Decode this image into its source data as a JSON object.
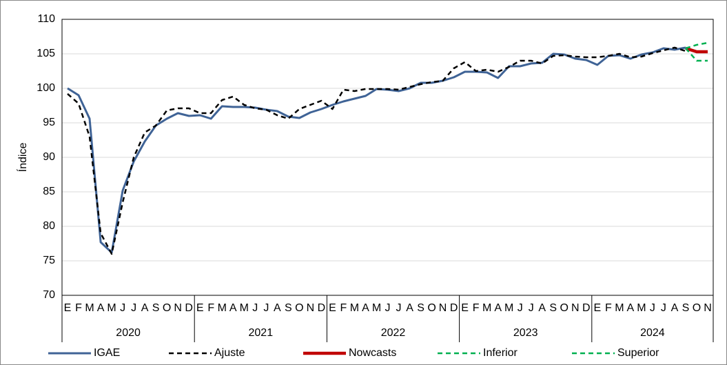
{
  "chart_data": {
    "type": "line",
    "ylabel": "Índice",
    "categories": [
      "E",
      "F",
      "M",
      "A",
      "M",
      "J",
      "J",
      "A",
      "S",
      "O",
      "N",
      "D",
      "E",
      "F",
      "M",
      "A",
      "M",
      "J",
      "J",
      "A",
      "S",
      "O",
      "N",
      "D",
      "E",
      "F",
      "M",
      "A",
      "M",
      "J",
      "J",
      "A",
      "S",
      "O",
      "N",
      "D",
      "E",
      "F",
      "M",
      "A",
      "M",
      "J",
      "J",
      "A",
      "S",
      "O",
      "N",
      "D",
      "E",
      "F",
      "M",
      "A",
      "M",
      "J",
      "J",
      "A",
      "S",
      "O",
      "N"
    ],
    "years": [
      "2020",
      "2021",
      "2022",
      "2023",
      "2024"
    ],
    "ylim": [
      70,
      110
    ],
    "yticks": [
      70,
      75,
      80,
      85,
      90,
      95,
      100,
      105,
      110
    ],
    "grid": true,
    "series": [
      {
        "name": "IGAE",
        "color": "#3f6396",
        "dash": false,
        "width": 3,
        "values": [
          100.0,
          99.0,
          95.6,
          77.7,
          76.2,
          85.2,
          89.4,
          92.3,
          94.6,
          95.6,
          96.4,
          96.0,
          96.1,
          95.6,
          97.4,
          97.3,
          97.3,
          97.2,
          96.9,
          96.7,
          95.9,
          95.7,
          96.5,
          97.0,
          97.6,
          98.1,
          98.5,
          98.9,
          99.9,
          99.8,
          99.6,
          100.0,
          100.8,
          100.8,
          101.1,
          101.6,
          102.4,
          102.4,
          102.3,
          101.5,
          103.2,
          103.2,
          103.6,
          103.7,
          105.0,
          104.9,
          104.3,
          104.1,
          103.4,
          104.7,
          104.8,
          104.3,
          104.9,
          105.2,
          105.8,
          105.6,
          105.9,
          null,
          null
        ]
      },
      {
        "name": "Ajuste",
        "color": "#000000",
        "dash": true,
        "width": 2.5,
        "values": [
          99.2,
          97.8,
          93.0,
          79.0,
          76.0,
          83.5,
          90.0,
          93.6,
          94.6,
          96.8,
          97.1,
          97.1,
          96.4,
          96.4,
          98.3,
          98.8,
          97.6,
          97.1,
          96.9,
          96.1,
          95.6,
          97.0,
          97.6,
          98.2,
          97.0,
          99.8,
          99.6,
          99.9,
          99.9,
          99.9,
          99.8,
          100.2,
          100.6,
          100.9,
          101.1,
          102.9,
          103.8,
          102.5,
          102.7,
          102.4,
          103.1,
          104.0,
          104.0,
          103.6,
          104.7,
          104.8,
          104.6,
          104.5,
          104.5,
          104.7,
          105.0,
          104.5,
          104.6,
          105.1,
          105.5,
          105.9,
          105.4,
          null,
          null
        ]
      },
      {
        "name": "Nowcasts",
        "color": "#c00000",
        "dash": false,
        "width": 4.5,
        "values": [
          null,
          null,
          null,
          null,
          null,
          null,
          null,
          null,
          null,
          null,
          null,
          null,
          null,
          null,
          null,
          null,
          null,
          null,
          null,
          null,
          null,
          null,
          null,
          null,
          null,
          null,
          null,
          null,
          null,
          null,
          null,
          null,
          null,
          null,
          null,
          null,
          null,
          null,
          null,
          null,
          null,
          null,
          null,
          null,
          null,
          null,
          null,
          null,
          null,
          null,
          null,
          null,
          null,
          null,
          null,
          null,
          105.8,
          105.3,
          105.3
        ]
      },
      {
        "name": "Inferior",
        "color": "#00b050",
        "dash": true,
        "width": 2.5,
        "values": [
          null,
          null,
          null,
          null,
          null,
          null,
          null,
          null,
          null,
          null,
          null,
          null,
          null,
          null,
          null,
          null,
          null,
          null,
          null,
          null,
          null,
          null,
          null,
          null,
          null,
          null,
          null,
          null,
          null,
          null,
          null,
          null,
          null,
          null,
          null,
          null,
          null,
          null,
          null,
          null,
          null,
          null,
          null,
          null,
          null,
          null,
          null,
          null,
          null,
          null,
          null,
          null,
          null,
          null,
          null,
          null,
          105.8,
          104.0,
          104.0
        ]
      },
      {
        "name": "Superior",
        "color": "#00b050",
        "dash": true,
        "width": 2.5,
        "values": [
          null,
          null,
          null,
          null,
          null,
          null,
          null,
          null,
          null,
          null,
          null,
          null,
          null,
          null,
          null,
          null,
          null,
          null,
          null,
          null,
          null,
          null,
          null,
          null,
          null,
          null,
          null,
          null,
          null,
          null,
          null,
          null,
          null,
          null,
          null,
          null,
          null,
          null,
          null,
          null,
          null,
          null,
          null,
          null,
          null,
          null,
          null,
          null,
          null,
          null,
          null,
          null,
          null,
          null,
          null,
          null,
          105.8,
          106.3,
          106.6
        ]
      }
    ]
  }
}
